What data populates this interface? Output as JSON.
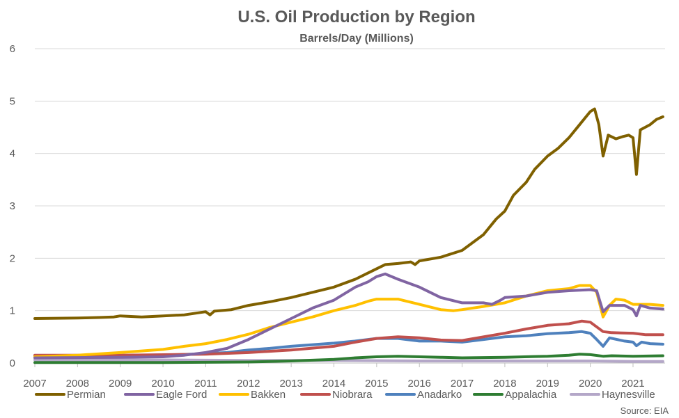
{
  "chart_data": {
    "type": "line",
    "title": "U.S. Oil Production by Region",
    "subtitle": "Barrels/Day (Millions)",
    "source": "Source: EIA",
    "xlabel": "",
    "ylabel": "",
    "xlim": [
      2007,
      2021.75
    ],
    "ylim": [
      0,
      6
    ],
    "y_ticks": [
      "0",
      "1",
      "2",
      "3",
      "4",
      "5",
      "6"
    ],
    "x_ticks": [
      "2007",
      "2008",
      "2009",
      "2010",
      "2011",
      "2012",
      "2013",
      "2014",
      "2015",
      "2016",
      "2017",
      "2018",
      "2019",
      "2020",
      "2021"
    ],
    "grid": true,
    "legend_position": "bottom",
    "series": [
      {
        "name": "Permian",
        "color": "#7f6000",
        "points": [
          [
            2007.0,
            0.85
          ],
          [
            2008.0,
            0.86
          ],
          [
            2008.5,
            0.87
          ],
          [
            2008.85,
            0.88
          ],
          [
            2009.0,
            0.9
          ],
          [
            2009.5,
            0.88
          ],
          [
            2010.0,
            0.9
          ],
          [
            2010.5,
            0.92
          ],
          [
            2011.0,
            0.98
          ],
          [
            2011.1,
            0.92
          ],
          [
            2011.2,
            0.99
          ],
          [
            2011.6,
            1.02
          ],
          [
            2012.0,
            1.1
          ],
          [
            2012.5,
            1.17
          ],
          [
            2013.0,
            1.25
          ],
          [
            2013.5,
            1.35
          ],
          [
            2014.0,
            1.45
          ],
          [
            2014.5,
            1.6
          ],
          [
            2014.8,
            1.72
          ],
          [
            2015.0,
            1.8
          ],
          [
            2015.2,
            1.88
          ],
          [
            2015.5,
            1.9
          ],
          [
            2015.8,
            1.93
          ],
          [
            2015.9,
            1.88
          ],
          [
            2016.0,
            1.95
          ],
          [
            2016.5,
            2.02
          ],
          [
            2017.0,
            2.15
          ],
          [
            2017.5,
            2.45
          ],
          [
            2017.8,
            2.75
          ],
          [
            2018.0,
            2.9
          ],
          [
            2018.2,
            3.2
          ],
          [
            2018.5,
            3.45
          ],
          [
            2018.7,
            3.7
          ],
          [
            2019.0,
            3.95
          ],
          [
            2019.25,
            4.1
          ],
          [
            2019.5,
            4.3
          ],
          [
            2019.75,
            4.55
          ],
          [
            2020.0,
            4.8
          ],
          [
            2020.1,
            4.85
          ],
          [
            2020.2,
            4.55
          ],
          [
            2020.3,
            3.95
          ],
          [
            2020.42,
            4.35
          ],
          [
            2020.6,
            4.28
          ],
          [
            2020.75,
            4.32
          ],
          [
            2020.9,
            4.35
          ],
          [
            2021.0,
            4.3
          ],
          [
            2021.08,
            3.6
          ],
          [
            2021.17,
            4.45
          ],
          [
            2021.4,
            4.55
          ],
          [
            2021.55,
            4.65
          ],
          [
            2021.7,
            4.7
          ]
        ]
      },
      {
        "name": "Eagle Ford",
        "color": "#8064a2",
        "points": [
          [
            2007.0,
            0.1
          ],
          [
            2009.0,
            0.11
          ],
          [
            2010.0,
            0.12
          ],
          [
            2010.5,
            0.15
          ],
          [
            2011.0,
            0.2
          ],
          [
            2011.5,
            0.28
          ],
          [
            2012.0,
            0.45
          ],
          [
            2012.5,
            0.65
          ],
          [
            2013.0,
            0.85
          ],
          [
            2013.5,
            1.05
          ],
          [
            2014.0,
            1.2
          ],
          [
            2014.5,
            1.45
          ],
          [
            2014.8,
            1.55
          ],
          [
            2015.0,
            1.65
          ],
          [
            2015.2,
            1.7
          ],
          [
            2015.5,
            1.6
          ],
          [
            2016.0,
            1.45
          ],
          [
            2016.5,
            1.25
          ],
          [
            2017.0,
            1.15
          ],
          [
            2017.5,
            1.15
          ],
          [
            2017.7,
            1.12
          ],
          [
            2017.9,
            1.2
          ],
          [
            2018.0,
            1.25
          ],
          [
            2018.5,
            1.28
          ],
          [
            2019.0,
            1.35
          ],
          [
            2019.5,
            1.38
          ],
          [
            2020.0,
            1.4
          ],
          [
            2020.15,
            1.38
          ],
          [
            2020.3,
            0.98
          ],
          [
            2020.45,
            1.1
          ],
          [
            2020.8,
            1.1
          ],
          [
            2021.0,
            1.02
          ],
          [
            2021.08,
            0.9
          ],
          [
            2021.17,
            1.1
          ],
          [
            2021.4,
            1.05
          ],
          [
            2021.7,
            1.03
          ]
        ]
      },
      {
        "name": "Bakken",
        "color": "#ffc000",
        "points": [
          [
            2007.0,
            0.12
          ],
          [
            2008.0,
            0.15
          ],
          [
            2009.0,
            0.2
          ],
          [
            2010.0,
            0.26
          ],
          [
            2010.5,
            0.32
          ],
          [
            2011.0,
            0.37
          ],
          [
            2011.5,
            0.45
          ],
          [
            2012.0,
            0.55
          ],
          [
            2012.5,
            0.68
          ],
          [
            2013.0,
            0.78
          ],
          [
            2013.5,
            0.88
          ],
          [
            2014.0,
            1.0
          ],
          [
            2014.5,
            1.1
          ],
          [
            2014.8,
            1.18
          ],
          [
            2015.0,
            1.22
          ],
          [
            2015.5,
            1.22
          ],
          [
            2016.0,
            1.12
          ],
          [
            2016.5,
            1.02
          ],
          [
            2016.8,
            1.0
          ],
          [
            2017.0,
            1.02
          ],
          [
            2017.5,
            1.08
          ],
          [
            2018.0,
            1.15
          ],
          [
            2018.5,
            1.28
          ],
          [
            2019.0,
            1.38
          ],
          [
            2019.5,
            1.42
          ],
          [
            2019.75,
            1.48
          ],
          [
            2020.0,
            1.48
          ],
          [
            2020.15,
            1.35
          ],
          [
            2020.3,
            0.88
          ],
          [
            2020.45,
            1.1
          ],
          [
            2020.6,
            1.22
          ],
          [
            2020.8,
            1.2
          ],
          [
            2021.0,
            1.12
          ],
          [
            2021.4,
            1.12
          ],
          [
            2021.7,
            1.1
          ]
        ]
      },
      {
        "name": "Niobrara",
        "color": "#c0504d",
        "points": [
          [
            2007.0,
            0.15
          ],
          [
            2009.0,
            0.15
          ],
          [
            2011.0,
            0.17
          ],
          [
            2012.0,
            0.2
          ],
          [
            2013.0,
            0.25
          ],
          [
            2014.0,
            0.32
          ],
          [
            2014.5,
            0.4
          ],
          [
            2015.0,
            0.47
          ],
          [
            2015.5,
            0.5
          ],
          [
            2016.0,
            0.48
          ],
          [
            2016.5,
            0.44
          ],
          [
            2017.0,
            0.43
          ],
          [
            2017.5,
            0.5
          ],
          [
            2018.0,
            0.57
          ],
          [
            2018.5,
            0.65
          ],
          [
            2019.0,
            0.72
          ],
          [
            2019.5,
            0.75
          ],
          [
            2019.8,
            0.8
          ],
          [
            2020.0,
            0.78
          ],
          [
            2020.3,
            0.6
          ],
          [
            2020.5,
            0.58
          ],
          [
            2021.0,
            0.57
          ],
          [
            2021.3,
            0.54
          ],
          [
            2021.7,
            0.54
          ]
        ]
      },
      {
        "name": "Anadarko",
        "color": "#4f81bd",
        "points": [
          [
            2007.0,
            0.13
          ],
          [
            2008.0,
            0.14
          ],
          [
            2009.0,
            0.14
          ],
          [
            2010.0,
            0.15
          ],
          [
            2011.0,
            0.18
          ],
          [
            2011.5,
            0.2
          ],
          [
            2012.0,
            0.25
          ],
          [
            2012.5,
            0.28
          ],
          [
            2013.0,
            0.32
          ],
          [
            2013.5,
            0.35
          ],
          [
            2014.0,
            0.38
          ],
          [
            2014.5,
            0.42
          ],
          [
            2015.0,
            0.47
          ],
          [
            2015.5,
            0.47
          ],
          [
            2016.0,
            0.42
          ],
          [
            2016.5,
            0.42
          ],
          [
            2017.0,
            0.4
          ],
          [
            2017.5,
            0.45
          ],
          [
            2018.0,
            0.5
          ],
          [
            2018.5,
            0.52
          ],
          [
            2019.0,
            0.56
          ],
          [
            2019.5,
            0.58
          ],
          [
            2019.8,
            0.6
          ],
          [
            2020.0,
            0.57
          ],
          [
            2020.15,
            0.45
          ],
          [
            2020.3,
            0.32
          ],
          [
            2020.45,
            0.48
          ],
          [
            2020.8,
            0.42
          ],
          [
            2021.0,
            0.4
          ],
          [
            2021.08,
            0.33
          ],
          [
            2021.2,
            0.4
          ],
          [
            2021.4,
            0.37
          ],
          [
            2021.7,
            0.36
          ]
        ]
      },
      {
        "name": "Appalachia",
        "color": "#2e7d32",
        "points": [
          [
            2007.0,
            0.01
          ],
          [
            2010.0,
            0.01
          ],
          [
            2012.0,
            0.02
          ],
          [
            2013.0,
            0.04
          ],
          [
            2014.0,
            0.07
          ],
          [
            2014.5,
            0.1
          ],
          [
            2015.0,
            0.12
          ],
          [
            2015.5,
            0.13
          ],
          [
            2016.0,
            0.12
          ],
          [
            2016.5,
            0.11
          ],
          [
            2017.0,
            0.1
          ],
          [
            2018.0,
            0.11
          ],
          [
            2019.0,
            0.13
          ],
          [
            2019.5,
            0.15
          ],
          [
            2019.75,
            0.17
          ],
          [
            2020.0,
            0.16
          ],
          [
            2020.3,
            0.13
          ],
          [
            2020.5,
            0.14
          ],
          [
            2021.0,
            0.13
          ],
          [
            2021.7,
            0.14
          ]
        ]
      },
      {
        "name": "Haynesville",
        "color": "#b4a7c8",
        "points": [
          [
            2007.0,
            0.06
          ],
          [
            2008.0,
            0.06
          ],
          [
            2010.0,
            0.06
          ],
          [
            2012.0,
            0.05
          ],
          [
            2014.0,
            0.05
          ],
          [
            2016.0,
            0.04
          ],
          [
            2018.0,
            0.04
          ],
          [
            2020.0,
            0.04
          ],
          [
            2021.0,
            0.03
          ],
          [
            2021.7,
            0.03
          ]
        ]
      }
    ]
  }
}
